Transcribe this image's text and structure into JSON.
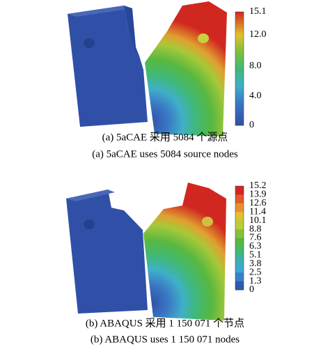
{
  "panels": [
    {
      "colorbar_ticks": [
        "15.1",
        "12.0",
        "8.0",
        "4.0",
        "0"
      ],
      "caption_zh": "(a) 5aCAE 采用 5084 个源点",
      "caption_en": "(a) 5aCAE uses 5084 source nodes"
    },
    {
      "colorbar_ticks": [
        "15.2",
        "13.9",
        "12.6",
        "11.4",
        "10.1",
        "8.8",
        "7.6",
        "6.3",
        "5.1",
        "3.8",
        "2.5",
        "1.3",
        "0"
      ],
      "caption_zh": "(b) ABAQUS 采用 1 150 071 个节点",
      "caption_en": "(b) ABAQUS uses 1 150 071 nodes"
    }
  ]
}
